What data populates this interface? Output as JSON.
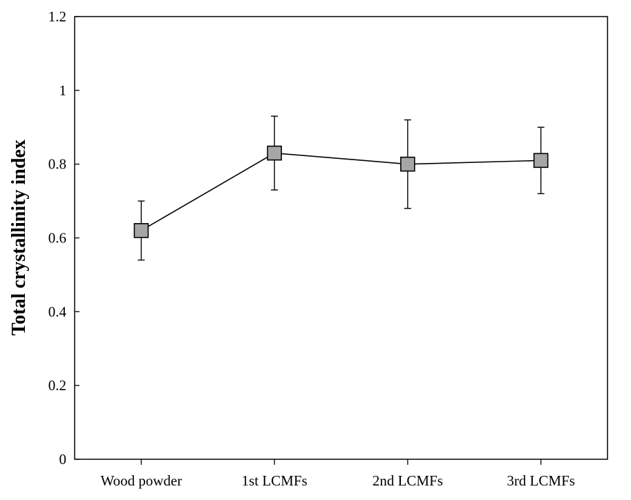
{
  "chart_data": {
    "type": "line",
    "title": "",
    "xlabel": "",
    "ylabel": "Total crystallinity index",
    "ylim": [
      0,
      1.2
    ],
    "yticks": [
      "0",
      "0.2",
      "0.4",
      "0.6",
      "0.8",
      "1",
      "1.2"
    ],
    "ytick_values": [
      0,
      0.2,
      0.4,
      0.6,
      0.8,
      1.0,
      1.2
    ],
    "categories": [
      "Wood powder",
      "1st LCMFs",
      "2nd LCMFs",
      "3rd LCMFs"
    ],
    "series": [
      {
        "values": [
          0.62,
          0.83,
          0.8,
          0.81
        ],
        "error_low": [
          0.54,
          0.73,
          0.68,
          0.72
        ],
        "error_high": [
          0.7,
          0.93,
          0.92,
          0.9
        ],
        "marker": "square",
        "marker_color": "#a6a6a6",
        "line_color": "#000000"
      }
    ],
    "grid": false,
    "legend": "none"
  }
}
